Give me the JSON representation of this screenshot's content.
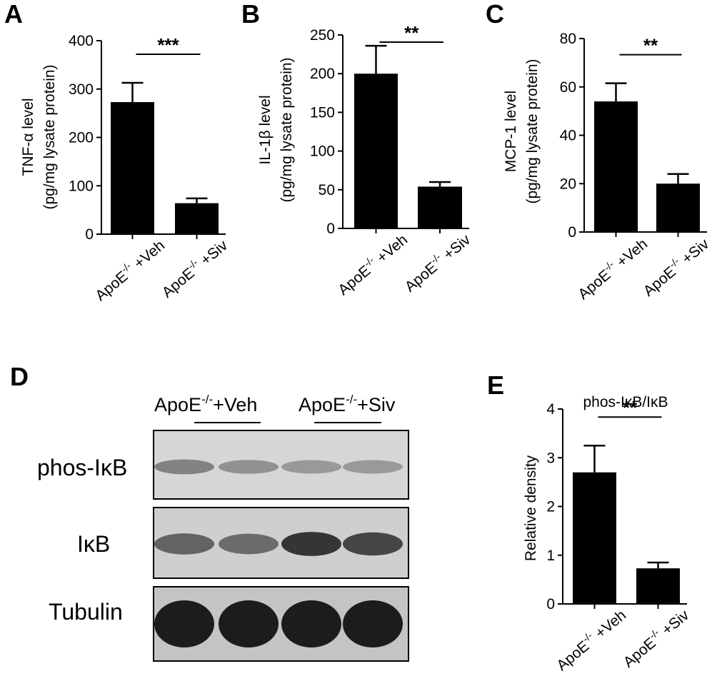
{
  "panels": {
    "A": {
      "label": "A",
      "chart_data": {
        "type": "bar",
        "categories": [
          "ApoE-/- +Veh",
          "ApoE-/- +Siv"
        ],
        "values": [
          273,
          64
        ],
        "errors": [
          40,
          10
        ],
        "ylim": [
          0,
          400
        ],
        "yticks": [
          "0",
          "100",
          "200",
          "300",
          "400"
        ],
        "ylabel_line1": "TNF-α level",
        "ylabel_line2": "(pg/mg lysate protein)",
        "significance": "***"
      }
    },
    "B": {
      "label": "B",
      "chart_data": {
        "type": "bar",
        "categories": [
          "ApoE-/- +Veh",
          "ApoE-/- +Siv"
        ],
        "values": [
          200,
          54
        ],
        "errors": [
          36,
          6
        ],
        "ylim": [
          0,
          250
        ],
        "yticks": [
          "0",
          "50",
          "100",
          "150",
          "200",
          "250"
        ],
        "ylabel_line1": "IL-1β level",
        "ylabel_line2": "(pg/mg lysate protein)",
        "significance": "**"
      }
    },
    "C": {
      "label": "C",
      "chart_data": {
        "type": "bar",
        "categories": [
          "ApoE-/- +Veh",
          "ApoE-/- +Siv"
        ],
        "values": [
          54,
          20
        ],
        "errors": [
          7.5,
          4
        ],
        "ylim": [
          0,
          80
        ],
        "yticks": [
          "0",
          "20",
          "40",
          "60",
          "80"
        ],
        "ylabel_line1": "MCP-1 level",
        "ylabel_line2": "(pg/mg lysate protein)",
        "significance": "**"
      }
    },
    "D": {
      "label": "D",
      "groups": [
        {
          "base": "ApoE",
          "sup": "-/-",
          "suffix": "+Veh"
        },
        {
          "base": "ApoE",
          "sup": "-/-",
          "suffix": "+Siv"
        }
      ],
      "blots": [
        {
          "label": "phos-IκB",
          "background": "#d6d6d6",
          "bands": [
            0.35,
            0.25,
            0.2,
            0.2
          ]
        },
        {
          "label": "IκB",
          "background": "#cfcfcf",
          "bands": [
            0.55,
            0.5,
            0.85,
            0.75
          ]
        },
        {
          "label": "Tubulin",
          "background": "#c4c4c4",
          "bands": [
            1.0,
            1.0,
            1.0,
            1.0
          ]
        }
      ]
    },
    "E": {
      "label": "E",
      "title": "phos-IκB/IκB",
      "chart_data": {
        "type": "bar",
        "categories": [
          "ApoE-/- +Veh",
          "ApoE-/- +Siv"
        ],
        "values": [
          2.7,
          0.73
        ],
        "errors": [
          0.55,
          0.12
        ],
        "ylim": [
          0,
          4
        ],
        "yticks": [
          "0",
          "1",
          "2",
          "3",
          "4"
        ],
        "ylabel_line1": "Relative density",
        "significance": "**"
      }
    }
  },
  "xcat": {
    "base": "ApoE",
    "sup": "-/-"
  },
  "xsuffix": [
    "+Veh",
    "+Siv"
  ],
  "colors": {
    "bar": "#000000",
    "axis": "#000000"
  }
}
